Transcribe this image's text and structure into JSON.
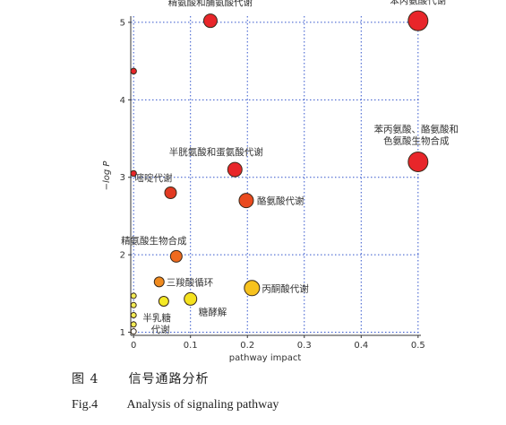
{
  "chart_data": {
    "type": "scatter",
    "xlabel": "pathway impact",
    "ylabel": "−log P",
    "xlim": [
      -0.005,
      0.505
    ],
    "ylim": [
      0.96,
      5.08
    ],
    "xticks": [
      "0",
      "0.1",
      "0.2",
      "0.3",
      "0.4",
      "0.5"
    ],
    "yticks": [
      "1",
      "2",
      "3",
      "4",
      "5"
    ],
    "grid": "dotted",
    "points": [
      {
        "x": 0.135,
        "y": 5.02,
        "r": 7.5,
        "color": "#e8262a",
        "label": "精氨酸和脯氨酸代谢"
      },
      {
        "x": 0.5,
        "y": 5.02,
        "r": 11,
        "color": "#e8262a",
        "label": "苯丙氨酸代谢"
      },
      {
        "x": 0.5,
        "y": 3.2,
        "r": 11,
        "color": "#e8262a",
        "label": "苯丙氨酸、酪氨酸和色氨酸生物合成"
      },
      {
        "x": 0.0,
        "y": 4.37,
        "r": 3.2,
        "color": "#e8262a",
        "label": ""
      },
      {
        "x": 0.0,
        "y": 3.05,
        "r": 3.2,
        "color": "#e8262a",
        "label": ""
      },
      {
        "x": 0.178,
        "y": 3.1,
        "r": 8,
        "color": "#e8262a",
        "label": "半胱氨酸和蛋氨酸代谢"
      },
      {
        "x": 0.065,
        "y": 2.8,
        "r": 6.5,
        "color": "#e23a22",
        "label": "嘧啶代谢"
      },
      {
        "x": 0.198,
        "y": 2.7,
        "r": 8,
        "color": "#ea4a1e",
        "label": "酪氨酸代谢"
      },
      {
        "x": 0.075,
        "y": 1.98,
        "r": 6.5,
        "color": "#ee6a1e",
        "label": "精氨酸生物合成"
      },
      {
        "x": 0.045,
        "y": 1.65,
        "r": 5.5,
        "color": "#f08a1e",
        "label": "三羧酸循环"
      },
      {
        "x": 0.208,
        "y": 1.57,
        "r": 8.5,
        "color": "#f7c21e",
        "label": "丙酮酸代谢"
      },
      {
        "x": 0.1,
        "y": 1.43,
        "r": 7,
        "color": "#f5e21e",
        "label": "糖酵解"
      },
      {
        "x": 0.053,
        "y": 1.4,
        "r": 5.5,
        "color": "#f5ea26",
        "label": ""
      },
      {
        "x": 0.0,
        "y": 1.47,
        "r": 3,
        "color": "#f2ec55",
        "label": ""
      },
      {
        "x": 0.0,
        "y": 1.35,
        "r": 3,
        "color": "#f2ec55",
        "label": ""
      },
      {
        "x": 0.0,
        "y": 1.22,
        "r": 3,
        "color": "#f2ec55",
        "label": ""
      },
      {
        "x": 0.0,
        "y": 1.1,
        "r": 3,
        "color": "#f2ec55",
        "label": "半乳糖代谢"
      },
      {
        "x": 0.0,
        "y": 1.01,
        "r": 3,
        "color": "#ffffff",
        "label": ""
      }
    ]
  },
  "caption_cn": {
    "num": "图 4",
    "text": "信号通路分析"
  },
  "caption_en": {
    "num": "Fig.4",
    "text": "Analysis of signaling pathway"
  }
}
